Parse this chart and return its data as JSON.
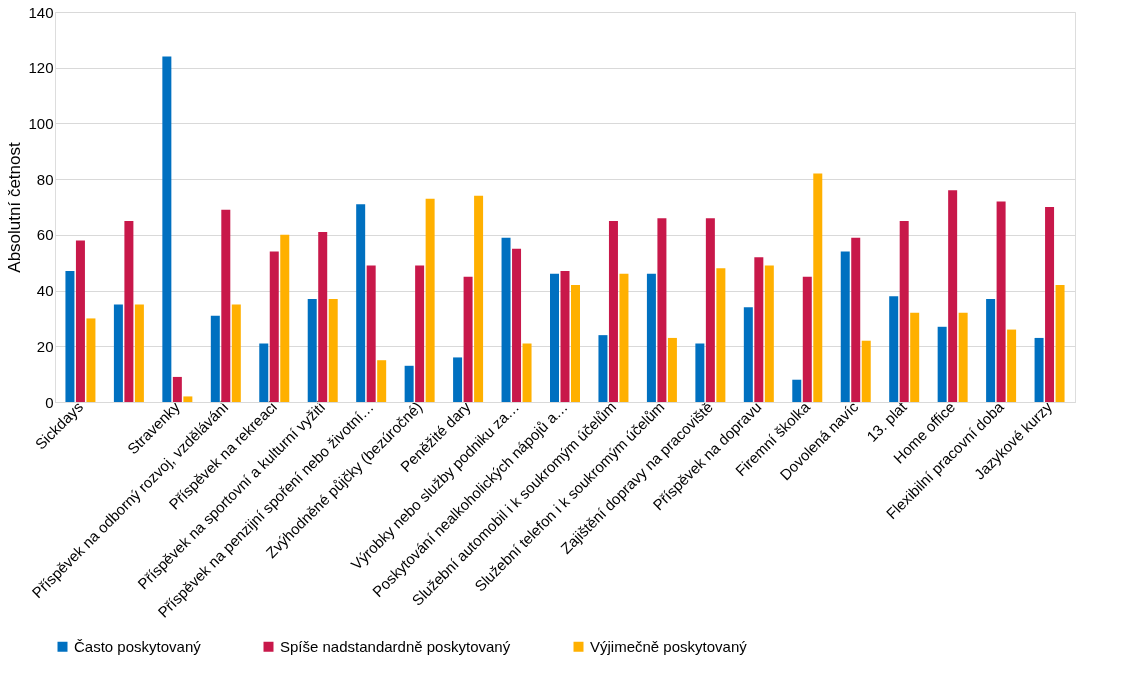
{
  "chart_data": {
    "type": "bar",
    "ylabel": "Absolutní četnost",
    "categories": [
      "Sickdays",
      null,
      "Stravenky",
      "Příspěvek na odborný rozvoj, vzdělávání",
      "Příspěvek na rekreaci",
      "Příspěvek na sportovní a kulturní vyžití",
      "Příspěvek na penzijní spoření nebo životní…",
      "Zvýhodněné půjčky (bezúročné)",
      "Peněžité dary",
      "Výrobky nebo služby podniku za…",
      "Poskytování nealkoholických nápojů a…",
      "Služební automobil i k soukromým účelům",
      "Služební telefon i k soukromým účelům",
      "Zajištění dopravy na pracoviště",
      "Příspěvek na dopravu",
      "Firemní školka",
      "Dovolená navíc",
      "13. plat",
      "Home office",
      "Flexibilní pracovní doba",
      "Jazykové kurzy"
    ],
    "series": [
      {
        "name": "Často poskytovaný",
        "color": "#0070c0",
        "values": [
          47,
          35,
          124,
          31,
          21,
          37,
          71,
          13,
          16,
          59,
          46,
          24,
          46,
          21,
          34,
          8,
          54,
          38,
          27,
          37,
          23
        ]
      },
      {
        "name": "Spíše nadstandardně poskytovaný",
        "color": "#c8184a",
        "values": [
          58,
          65,
          9,
          69,
          54,
          61,
          49,
          49,
          45,
          55,
          47,
          65,
          66,
          66,
          52,
          45,
          59,
          65,
          76,
          72,
          70
        ]
      },
      {
        "name": "Výjimečně poskytovaný",
        "color": "#ffb000",
        "values": [
          30,
          35,
          2,
          35,
          60,
          37,
          15,
          73,
          74,
          21,
          42,
          46,
          23,
          48,
          49,
          82,
          22,
          32,
          32,
          26,
          42
        ]
      }
    ],
    "ylim": [
      0,
      140
    ],
    "yticks": [
      0,
      20,
      40,
      60,
      80,
      100,
      120,
      140
    ],
    "grid": "y",
    "legend": "bottom"
  }
}
